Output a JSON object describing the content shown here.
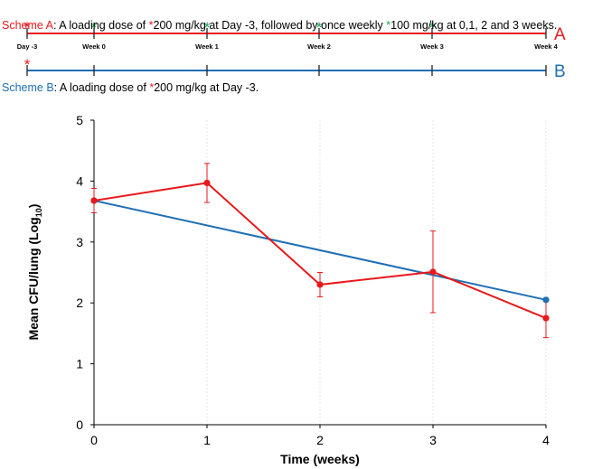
{
  "schedule": {
    "scheme_a": {
      "letter": "A",
      "color": "#e8191c",
      "markers": [
        {
          "label": "Day -3",
          "star": "red"
        },
        {
          "label": "Week 0",
          "star": "green"
        },
        {
          "label": "Week 1",
          "star": "green"
        },
        {
          "label": "Week 2",
          "star": "green"
        },
        {
          "label": "Week 3",
          "star": "green"
        },
        {
          "label": "Week 4",
          "star": null
        }
      ]
    },
    "scheme_b": {
      "letter": "B",
      "color": "#1f6fb4",
      "markers": [
        {
          "star": "red"
        },
        {
          "star": null
        },
        {
          "star": null
        },
        {
          "star": null
        },
        {
          "star": null
        },
        {
          "star": null
        }
      ]
    },
    "star_glyph": "*",
    "star_colors": {
      "red": "#e8191c",
      "green": "#1aa84b"
    },
    "caption_a": {
      "prefix": "Scheme A",
      "t1": ": A loading dose of ",
      "t2": "200 mg/kg at Day -3, followed by once weekly ",
      "t3": "100 mg/kg at 0,1, 2 and 3 weeks."
    },
    "caption_b": {
      "prefix": "Scheme B",
      "t1": ": A loading dose of ",
      "t2": "200 mg/kg at Day -3."
    }
  },
  "chart_data": {
    "type": "line",
    "xlabel": "Time (weeks)",
    "ylabel_main": "Mean CFU/lung (Log",
    "ylabel_sub": "10",
    "ylabel_close": ")",
    "x": [
      0,
      1,
      2,
      3,
      4
    ],
    "xlim": [
      0,
      4
    ],
    "ylim": [
      0,
      5
    ],
    "yticks": [
      0,
      1,
      2,
      3,
      4,
      5
    ],
    "xticks": [
      0,
      1,
      2,
      3,
      4
    ],
    "series": [
      {
        "name": "Scheme A",
        "color": "#e8191c",
        "x": [
          0,
          1,
          2,
          3,
          4
        ],
        "values": [
          3.68,
          3.97,
          2.3,
          2.51,
          1.75
        ],
        "err": [
          0.2,
          0.32,
          0.2,
          0.67,
          0.32
        ]
      },
      {
        "name": "Scheme B",
        "color": "#1f6fb4",
        "x": [
          0,
          4
        ],
        "values": [
          3.68,
          2.05
        ]
      }
    ]
  }
}
